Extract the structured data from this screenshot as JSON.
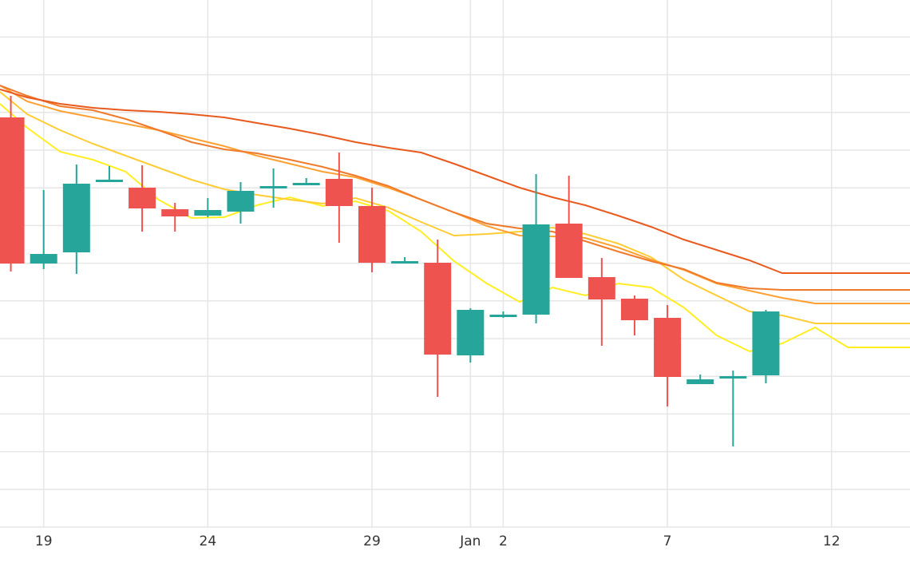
{
  "chart_data": {
    "type": "candlestick",
    "title": "",
    "xlabel": "",
    "ylabel": "",
    "x_tick_labels": [
      {
        "day": 19,
        "label": "19"
      },
      {
        "day": 24,
        "label": "24"
      },
      {
        "day": 29,
        "label": "29"
      },
      {
        "day": 32,
        "label": "Jan"
      },
      {
        "day": 33,
        "label": "2"
      },
      {
        "day": 38,
        "label": "7"
      },
      {
        "day": 43,
        "label": "12"
      }
    ],
    "x_range_days": [
      17.67,
      45.39
    ],
    "y_range": [
      0,
      660
    ],
    "grid": true,
    "up_color": "#26a69a",
    "down_color": "#ef5350",
    "candles": [
      {
        "day": 18,
        "open": 513,
        "high": 540,
        "low": 320,
        "close": 330
      },
      {
        "day": 19,
        "open": 330,
        "high": 422,
        "low": 323,
        "close": 342
      },
      {
        "day": 20,
        "open": 344,
        "high": 454,
        "low": 317,
        "close": 430
      },
      {
        "day": 21,
        "open": 432,
        "high": 452,
        "low": 432,
        "close": 435
      },
      {
        "day": 22,
        "open": 425,
        "high": 453,
        "low": 370,
        "close": 399
      },
      {
        "day": 23,
        "open": 398,
        "high": 406,
        "low": 370,
        "close": 389
      },
      {
        "day": 24,
        "open": 390,
        "high": 412,
        "low": 388,
        "close": 397
      },
      {
        "day": 25,
        "open": 395,
        "high": 432,
        "low": 380,
        "close": 421
      },
      {
        "day": 26,
        "open": 424,
        "high": 449,
        "low": 400,
        "close": 427
      },
      {
        "day": 27,
        "open": 429,
        "high": 437,
        "low": 429,
        "close": 431
      },
      {
        "day": 28,
        "open": 436,
        "high": 469,
        "low": 356,
        "close": 402
      },
      {
        "day": 29,
        "open": 402,
        "high": 425,
        "low": 319,
        "close": 331
      },
      {
        "day": 30,
        "open": 332,
        "high": 338,
        "low": 331,
        "close": 333
      },
      {
        "day": 31,
        "open": 331,
        "high": 360,
        "low": 163,
        "close": 216
      },
      {
        "day": 32,
        "open": 215,
        "high": 274,
        "low": 206,
        "close": 272
      },
      {
        "day": 33,
        "open": 263,
        "high": 270,
        "low": 262,
        "close": 266
      },
      {
        "day": 34,
        "open": 266,
        "high": 442,
        "low": 255,
        "close": 379
      },
      {
        "day": 35,
        "open": 380,
        "high": 440,
        "low": 312,
        "close": 312
      },
      {
        "day": 36,
        "open": 313,
        "high": 337,
        "low": 227,
        "close": 285
      },
      {
        "day": 37,
        "open": 286,
        "high": 290,
        "low": 240,
        "close": 259
      },
      {
        "day": 38,
        "open": 262,
        "high": 278,
        "low": 151,
        "close": 188
      },
      {
        "day": 39,
        "open": 179,
        "high": 191,
        "low": 179,
        "close": 185
      },
      {
        "day": 40,
        "open": 187,
        "high": 196,
        "low": 101,
        "close": 189
      },
      {
        "day": 41,
        "open": 190,
        "high": 272,
        "low": 180,
        "close": 270
      }
    ],
    "series": [
      {
        "color": "#ffee22",
        "points": [
          [
            17.67,
            530
          ],
          [
            18.5,
            500
          ],
          [
            19.5,
            470
          ],
          [
            20.5,
            460
          ],
          [
            21.5,
            445
          ],
          [
            22.5,
            410
          ],
          [
            23.5,
            387
          ],
          [
            24.5,
            388
          ],
          [
            25.5,
            403
          ],
          [
            26.5,
            413
          ],
          [
            27.5,
            402
          ],
          [
            28.5,
            408
          ],
          [
            29.5,
            396
          ],
          [
            30.5,
            370
          ],
          [
            31.5,
            333
          ],
          [
            32.5,
            305
          ],
          [
            33.5,
            282
          ],
          [
            34.5,
            300
          ],
          [
            35.5,
            290
          ],
          [
            36.5,
            305
          ],
          [
            37.5,
            300
          ],
          [
            38.5,
            275
          ],
          [
            39.5,
            240
          ],
          [
            40.5,
            220
          ],
          [
            41.5,
            230
          ],
          [
            42.5,
            250
          ],
          [
            43.5,
            225
          ],
          [
            44.5,
            225
          ],
          [
            45.39,
            225
          ]
        ]
      },
      {
        "color": "#ffcc33",
        "points": [
          [
            17.67,
            545
          ],
          [
            18.5,
            517
          ],
          [
            19.5,
            497
          ],
          [
            20.5,
            480
          ],
          [
            21.5,
            465
          ],
          [
            22.5,
            450
          ],
          [
            23.5,
            435
          ],
          [
            24.5,
            423
          ],
          [
            25.5,
            416
          ],
          [
            26.5,
            410
          ],
          [
            27.5,
            405
          ],
          [
            28.5,
            412
          ],
          [
            29.5,
            400
          ],
          [
            30.5,
            382
          ],
          [
            31.5,
            365
          ],
          [
            32.5,
            367
          ],
          [
            33.5,
            370
          ],
          [
            34.5,
            375
          ],
          [
            35.5,
            367
          ],
          [
            36.5,
            355
          ],
          [
            37.5,
            338
          ],
          [
            38.5,
            310
          ],
          [
            39.5,
            290
          ],
          [
            40.5,
            270
          ],
          [
            41.5,
            265
          ],
          [
            42.5,
            255
          ],
          [
            43.5,
            255
          ],
          [
            44.5,
            255
          ],
          [
            45.39,
            255
          ]
        ]
      },
      {
        "color": "#ffa033",
        "points": [
          [
            17.67,
            553
          ],
          [
            18.5,
            533
          ],
          [
            19.5,
            521
          ],
          [
            20.5,
            513
          ],
          [
            21.5,
            505
          ],
          [
            22.5,
            497
          ],
          [
            23.5,
            487
          ],
          [
            24.5,
            477
          ],
          [
            25.5,
            465
          ],
          [
            26.5,
            455
          ],
          [
            27.5,
            445
          ],
          [
            28.5,
            438
          ],
          [
            29.5,
            425
          ],
          [
            30.5,
            410
          ],
          [
            31.5,
            394
          ],
          [
            32.5,
            377
          ],
          [
            33.5,
            365
          ],
          [
            34.5,
            364
          ],
          [
            35.5,
            362
          ],
          [
            36.5,
            350
          ],
          [
            37.5,
            335
          ],
          [
            38.5,
            322
          ],
          [
            39.5,
            305
          ],
          [
            40.5,
            296
          ],
          [
            41.5,
            287
          ],
          [
            42.5,
            280
          ],
          [
            43.5,
            280
          ],
          [
            44.5,
            280
          ],
          [
            45.39,
            280
          ]
        ]
      },
      {
        "color": "#f07a2a",
        "points": [
          [
            17.67,
            553
          ],
          [
            18.5,
            540
          ],
          [
            19.5,
            527
          ],
          [
            20.5,
            522
          ],
          [
            21.5,
            511
          ],
          [
            22.5,
            497
          ],
          [
            23.5,
            482
          ],
          [
            24.5,
            473
          ],
          [
            25.5,
            468
          ],
          [
            26.5,
            460
          ],
          [
            27.5,
            451
          ],
          [
            28.5,
            440
          ],
          [
            29.5,
            427
          ],
          [
            30.5,
            410
          ],
          [
            31.5,
            394
          ],
          [
            32.5,
            380
          ],
          [
            33.5,
            374
          ],
          [
            34.5,
            370
          ],
          [
            35.5,
            358
          ],
          [
            36.5,
            345
          ],
          [
            37.5,
            333
          ],
          [
            38.5,
            323
          ],
          [
            39.5,
            306
          ],
          [
            40.5,
            299
          ],
          [
            41.5,
            297
          ],
          [
            42.5,
            297
          ],
          [
            43.5,
            297
          ],
          [
            44.5,
            297
          ],
          [
            45.39,
            297
          ]
        ]
      },
      {
        "color": "#e85a1e",
        "points": [
          [
            17.67,
            548
          ],
          [
            18.5,
            538
          ],
          [
            19.5,
            530
          ],
          [
            20.5,
            525
          ],
          [
            21.5,
            522
          ],
          [
            22.5,
            520
          ],
          [
            23.5,
            517
          ],
          [
            24.5,
            513
          ],
          [
            25.5,
            506
          ],
          [
            26.5,
            499
          ],
          [
            27.5,
            491
          ],
          [
            28.5,
            482
          ],
          [
            29.5,
            475
          ],
          [
            30.5,
            469
          ],
          [
            31.5,
            455
          ],
          [
            32.5,
            440
          ],
          [
            33.5,
            425
          ],
          [
            34.5,
            413
          ],
          [
            35.5,
            403
          ],
          [
            36.5,
            390
          ],
          [
            37.5,
            376
          ],
          [
            38.5,
            360
          ],
          [
            39.5,
            347
          ],
          [
            40.5,
            334
          ],
          [
            41.5,
            318
          ],
          [
            42.5,
            318
          ],
          [
            43.5,
            318
          ],
          [
            44.5,
            318
          ],
          [
            45.39,
            318
          ]
        ]
      }
    ]
  }
}
